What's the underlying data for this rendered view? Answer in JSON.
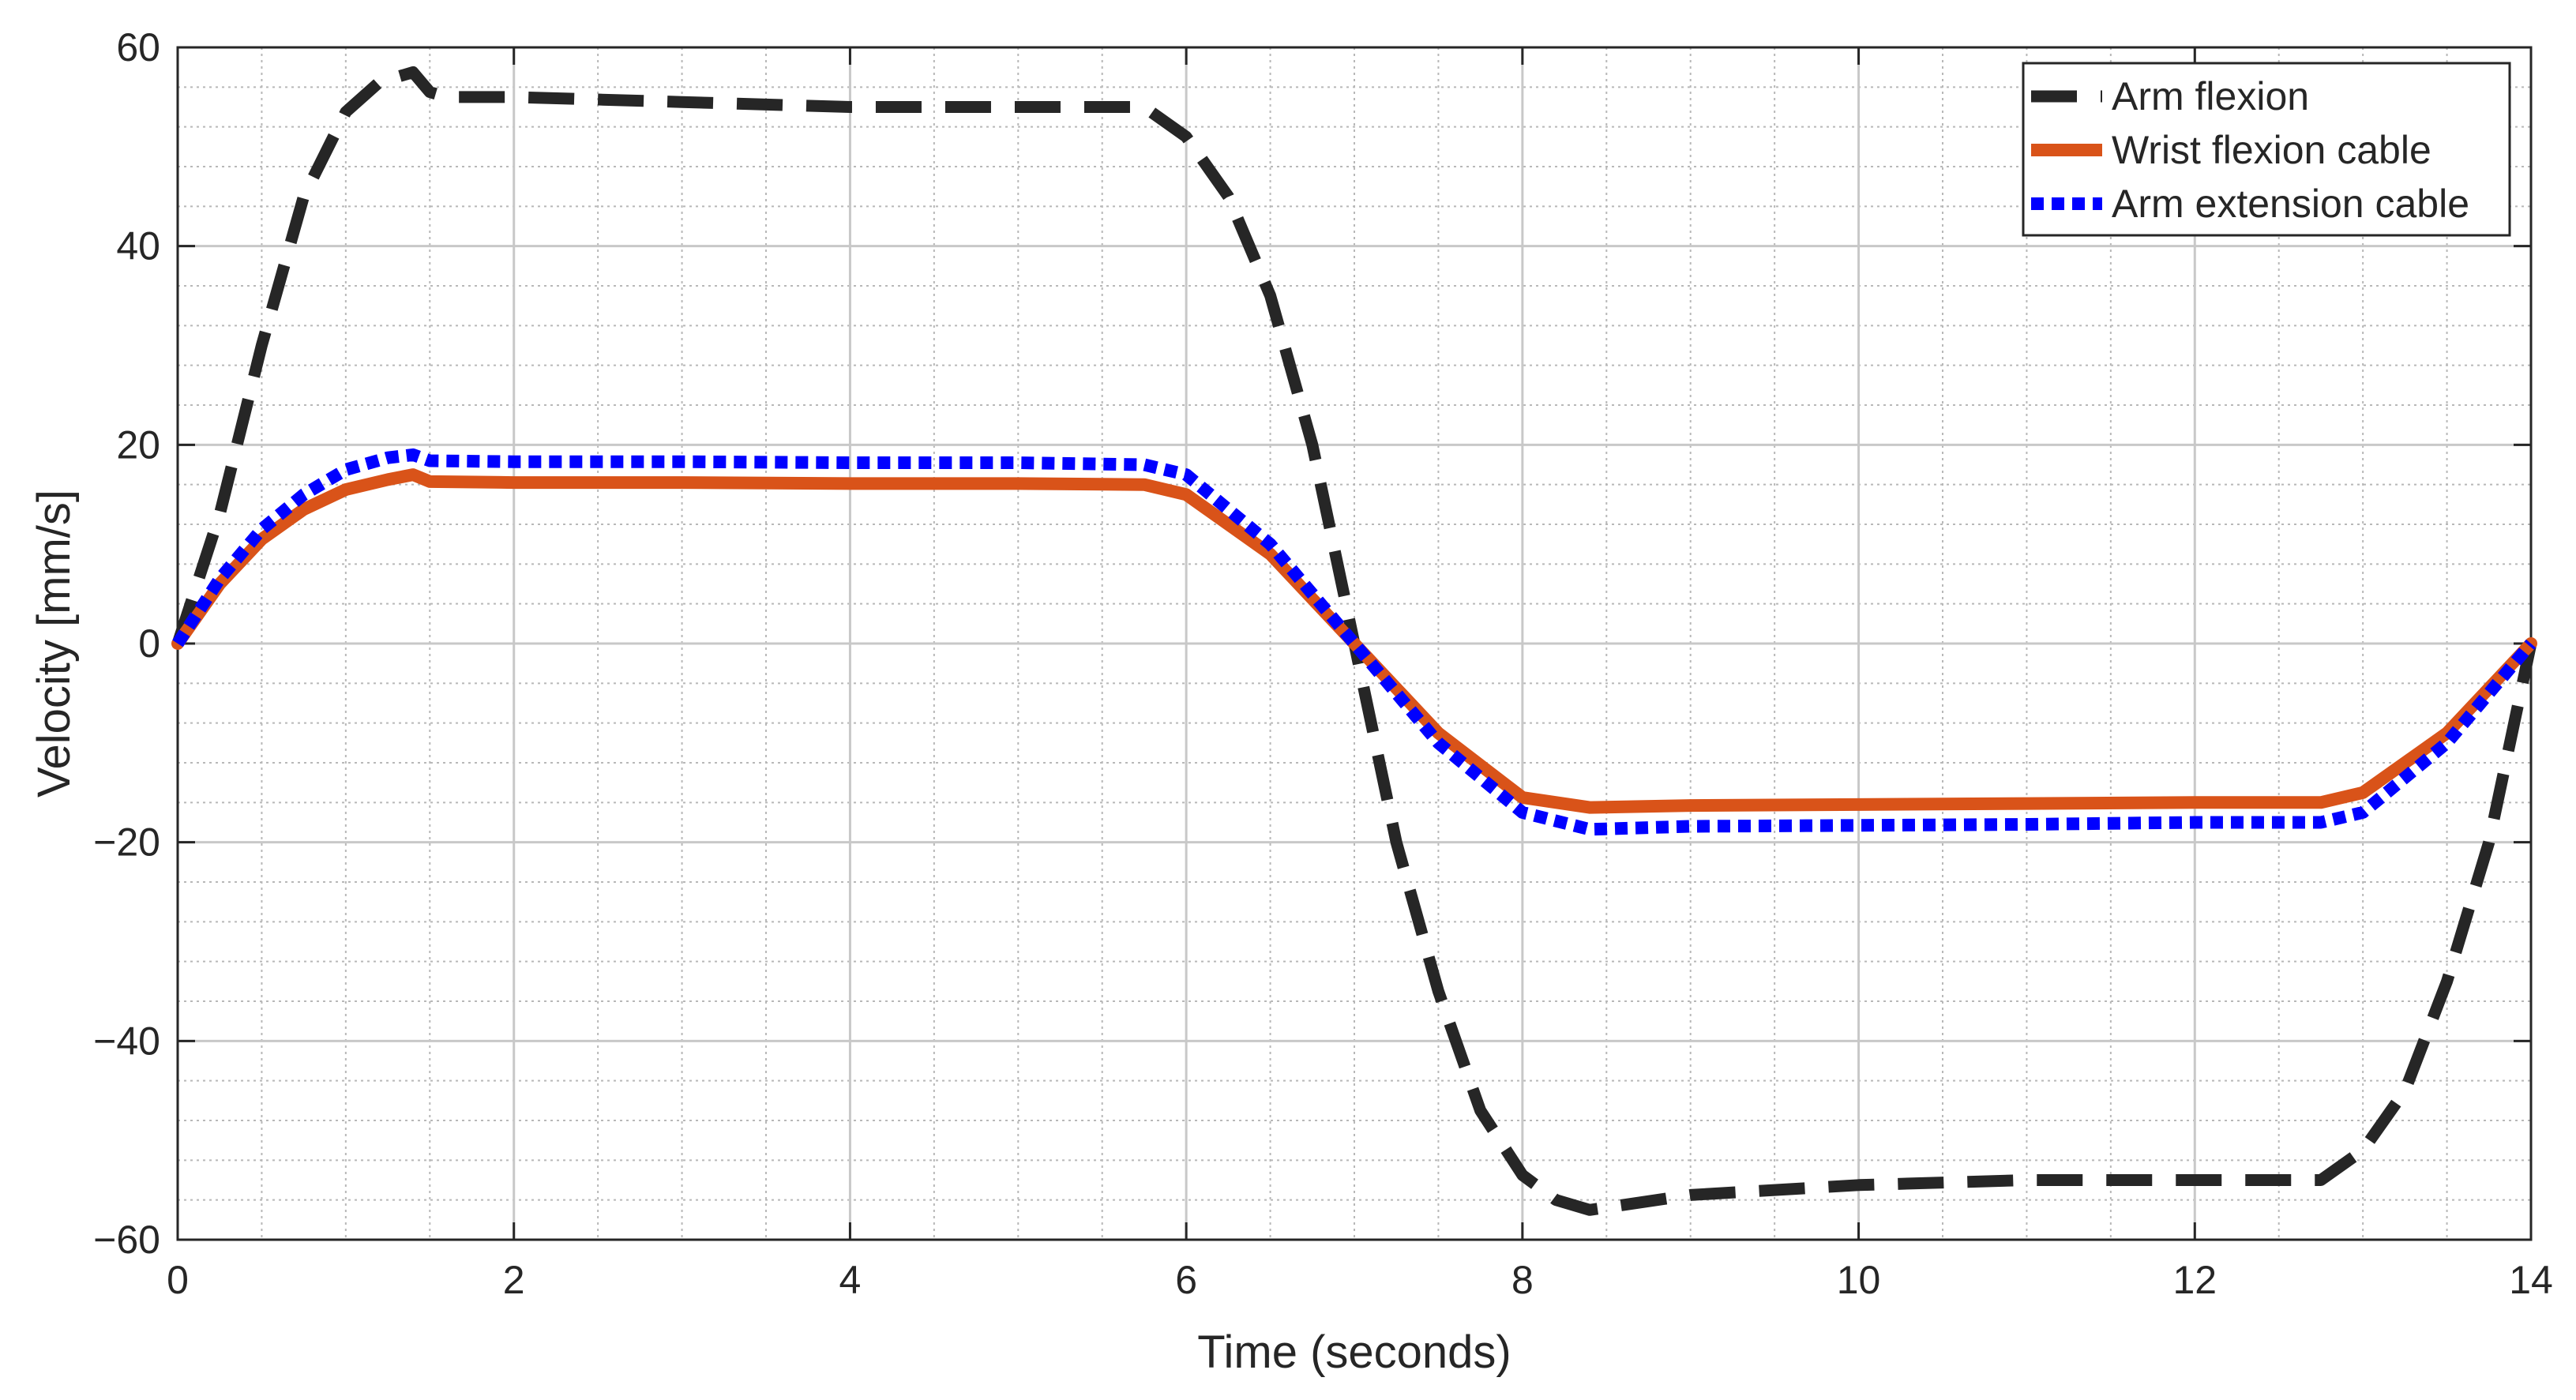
{
  "chart_data": {
    "type": "line",
    "title": "",
    "xlabel": "Time (seconds)",
    "ylabel": "Velocity [mm/s]",
    "xlim": [
      0,
      14
    ],
    "ylim": [
      -60,
      60
    ],
    "xticks": [
      0,
      2,
      4,
      6,
      8,
      10,
      12,
      14
    ],
    "yticks": [
      -60,
      -40,
      -20,
      0,
      20,
      40,
      60
    ],
    "xtick_labels": [
      "0",
      "2",
      "4",
      "6",
      "8",
      "10",
      "12",
      "14"
    ],
    "ytick_labels": [
      "−60",
      "−40",
      "−20",
      "0",
      "20",
      "40",
      "60"
    ],
    "grid": "major and minor",
    "legend_position": "top-right",
    "series": [
      {
        "name": "Arm flexion",
        "color": "#262626",
        "style": "dashed",
        "x": [
          0,
          0.25,
          0.5,
          0.75,
          1.0,
          1.2,
          1.4,
          1.5,
          1.6,
          2.0,
          3.0,
          4.0,
          5.0,
          5.75,
          6.0,
          6.25,
          6.5,
          6.75,
          7.0,
          7.25,
          7.5,
          7.75,
          8.0,
          8.2,
          8.4,
          9.0,
          10.0,
          11.0,
          12.0,
          12.75,
          13.0,
          13.25,
          13.5,
          13.75,
          14.0
        ],
        "y": [
          0,
          13,
          30,
          45,
          53.5,
          56.5,
          57.5,
          55.5,
          55,
          55,
          54.5,
          54,
          54,
          54,
          51,
          45,
          35,
          20,
          0,
          -20,
          -35,
          -47,
          -53.5,
          -56,
          -57,
          -55.5,
          -54.5,
          -54,
          -54,
          -54,
          -51,
          -45,
          -34,
          -20,
          0
        ]
      },
      {
        "name": "Wrist flexion cable",
        "color": "#d95319",
        "style": "solid",
        "x": [
          0,
          0.25,
          0.5,
          0.75,
          1.0,
          1.25,
          1.4,
          1.5,
          2.0,
          3.0,
          4.0,
          5.0,
          5.75,
          6.0,
          6.5,
          7.0,
          7.5,
          8.0,
          8.4,
          9.0,
          10.0,
          11.0,
          12.0,
          12.75,
          13.0,
          13.5,
          14.0
        ],
        "y": [
          0,
          6,
          10.5,
          13.5,
          15.5,
          16.5,
          17,
          16.3,
          16.2,
          16.2,
          16.1,
          16.1,
          16,
          15,
          9,
          0,
          -9,
          -15.5,
          -16.5,
          -16.3,
          -16.2,
          -16.1,
          -16,
          -16,
          -15,
          -9,
          0
        ]
      },
      {
        "name": "Arm extension cable",
        "color": "#0000ff",
        "style": "dotted",
        "x": [
          0,
          0.25,
          0.5,
          0.75,
          1.0,
          1.25,
          1.4,
          1.5,
          2.0,
          3.0,
          4.0,
          5.0,
          5.75,
          6.0,
          6.5,
          7.0,
          7.5,
          8.0,
          8.4,
          9.0,
          10.0,
          11.0,
          12.0,
          12.75,
          13.0,
          13.5,
          14.0
        ],
        "y": [
          0,
          6.5,
          11.5,
          15,
          17.5,
          18.7,
          19,
          18.4,
          18.3,
          18.3,
          18.2,
          18.2,
          18,
          17,
          10,
          0,
          -10,
          -17,
          -18.7,
          -18.4,
          -18.3,
          -18.2,
          -18,
          -18,
          -17,
          -10,
          0
        ]
      }
    ]
  }
}
